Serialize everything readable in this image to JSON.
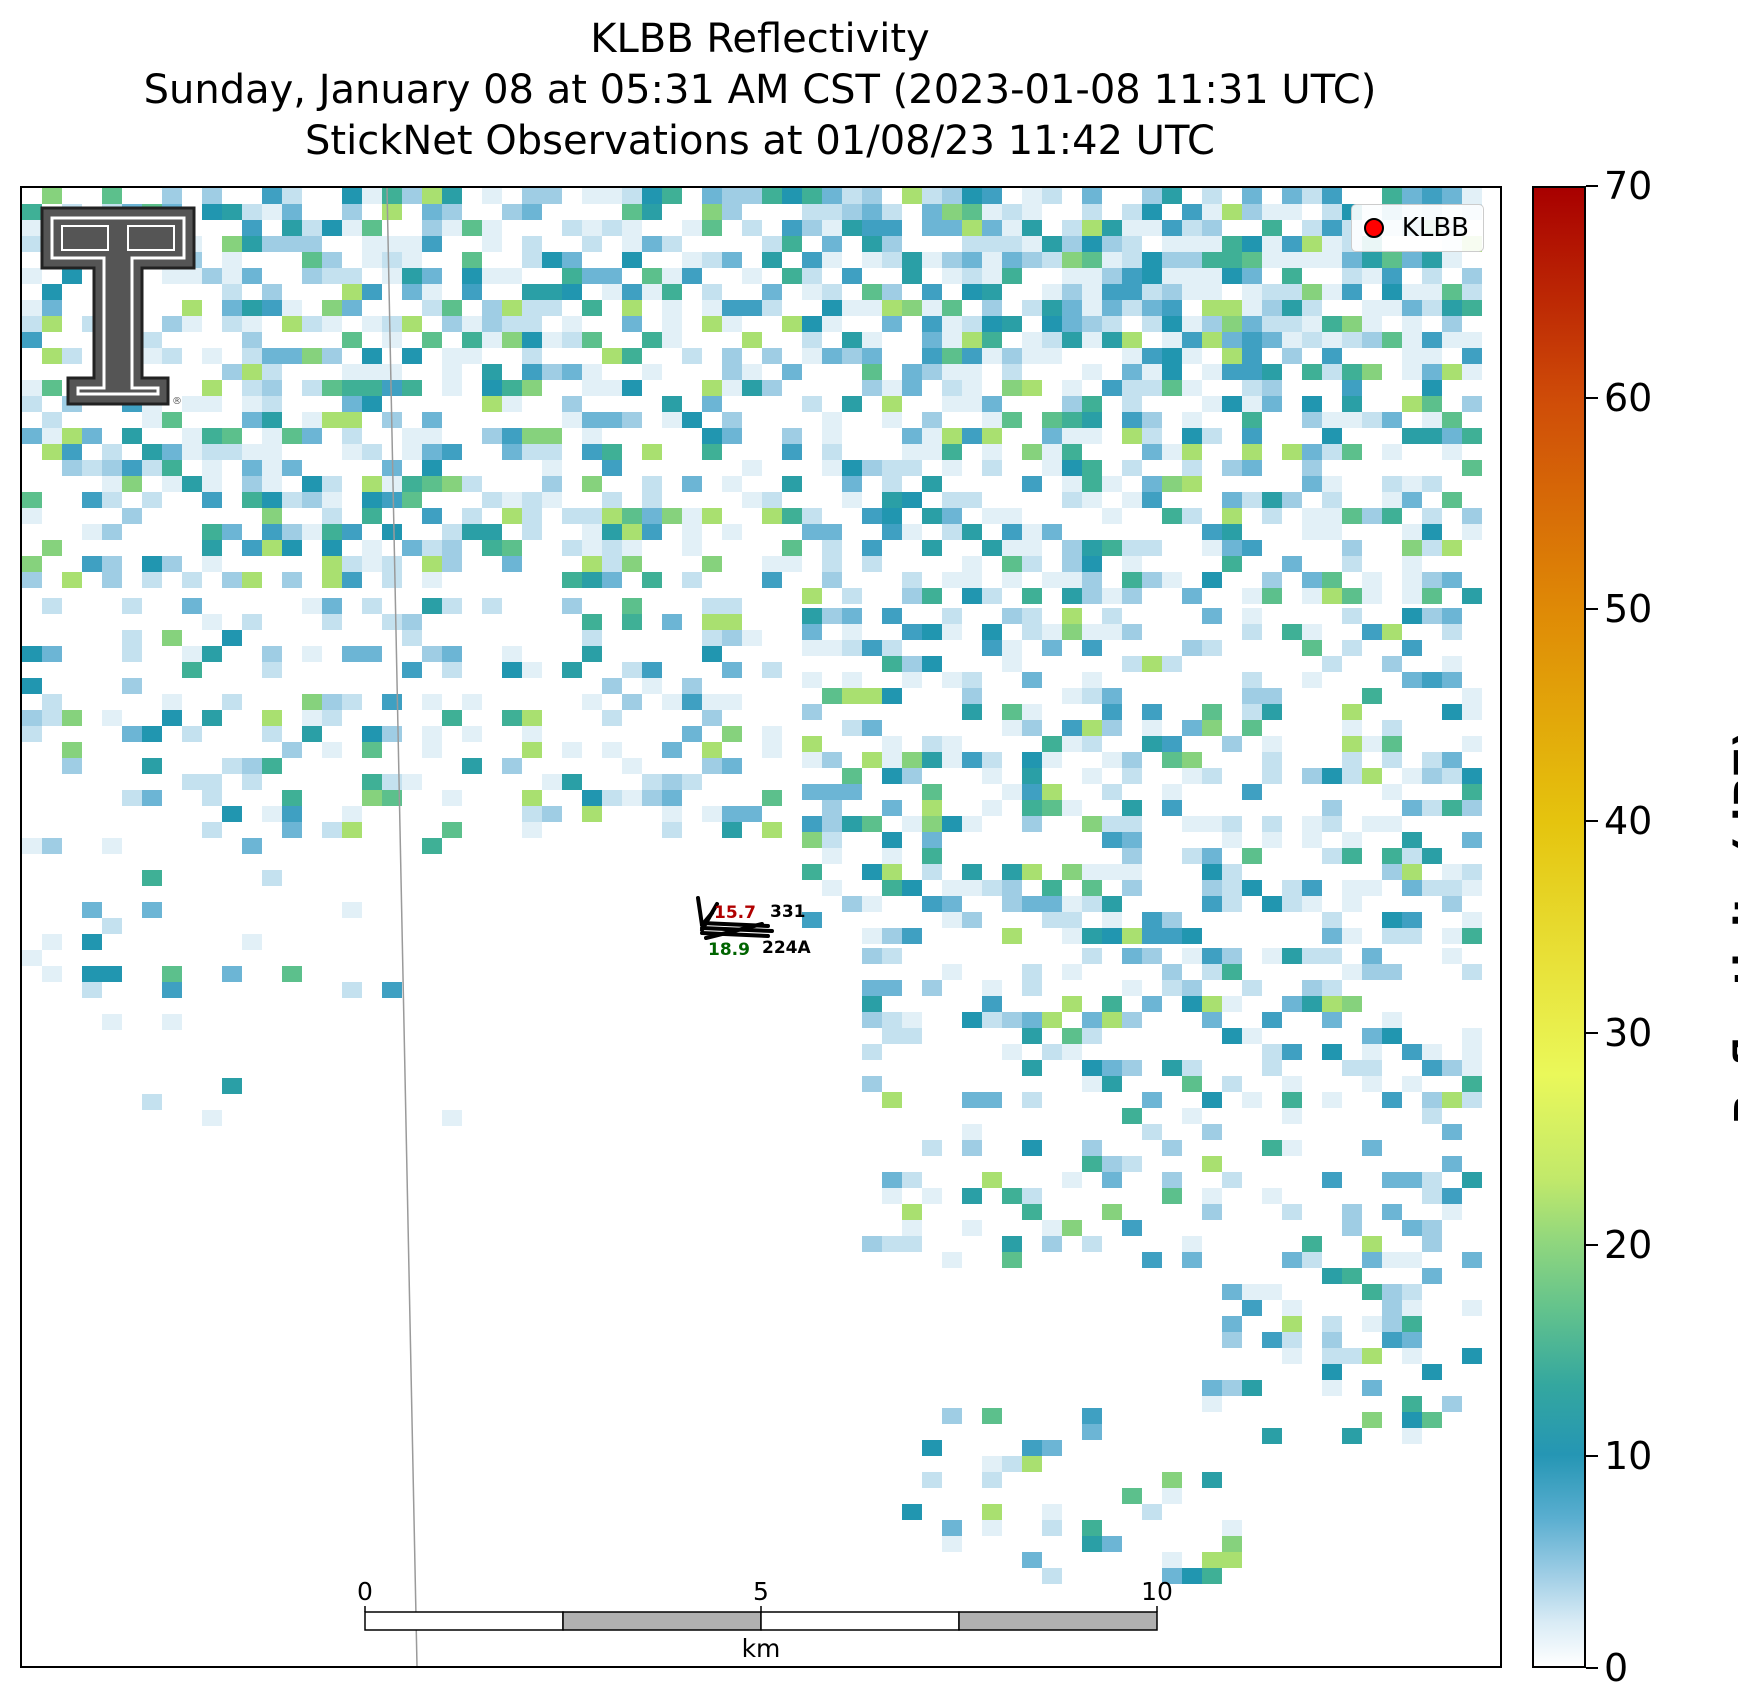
{
  "titles": {
    "line1": "KLBB Reflectivity",
    "line2": "Sunday, January 08 at 05:31 AM CST (2023-01-08 11:31 UTC)",
    "line3": "StickNet Observations at 01/08/23 11:42 UTC"
  },
  "legend": {
    "label": "KLBB",
    "marker_color": "#ff0000"
  },
  "logo": {
    "text": "Texas Tech Double T",
    "color": "#555555"
  },
  "stations": [
    {
      "id": "331",
      "temperature": "15.7",
      "temperature_color": "#b00000"
    },
    {
      "id": "224A",
      "dewpoint": "18.9",
      "dewpoint_color": "#006400"
    }
  ],
  "scale_bar": {
    "unit": "km",
    "ticks": [
      "0",
      "5",
      "10"
    ]
  },
  "colorbar": {
    "label": "Reflectivity (dBZ)",
    "ticks": [
      "0",
      "10",
      "20",
      "30",
      "40",
      "50",
      "60",
      "70"
    ],
    "range": [
      0,
      70
    ]
  }
}
